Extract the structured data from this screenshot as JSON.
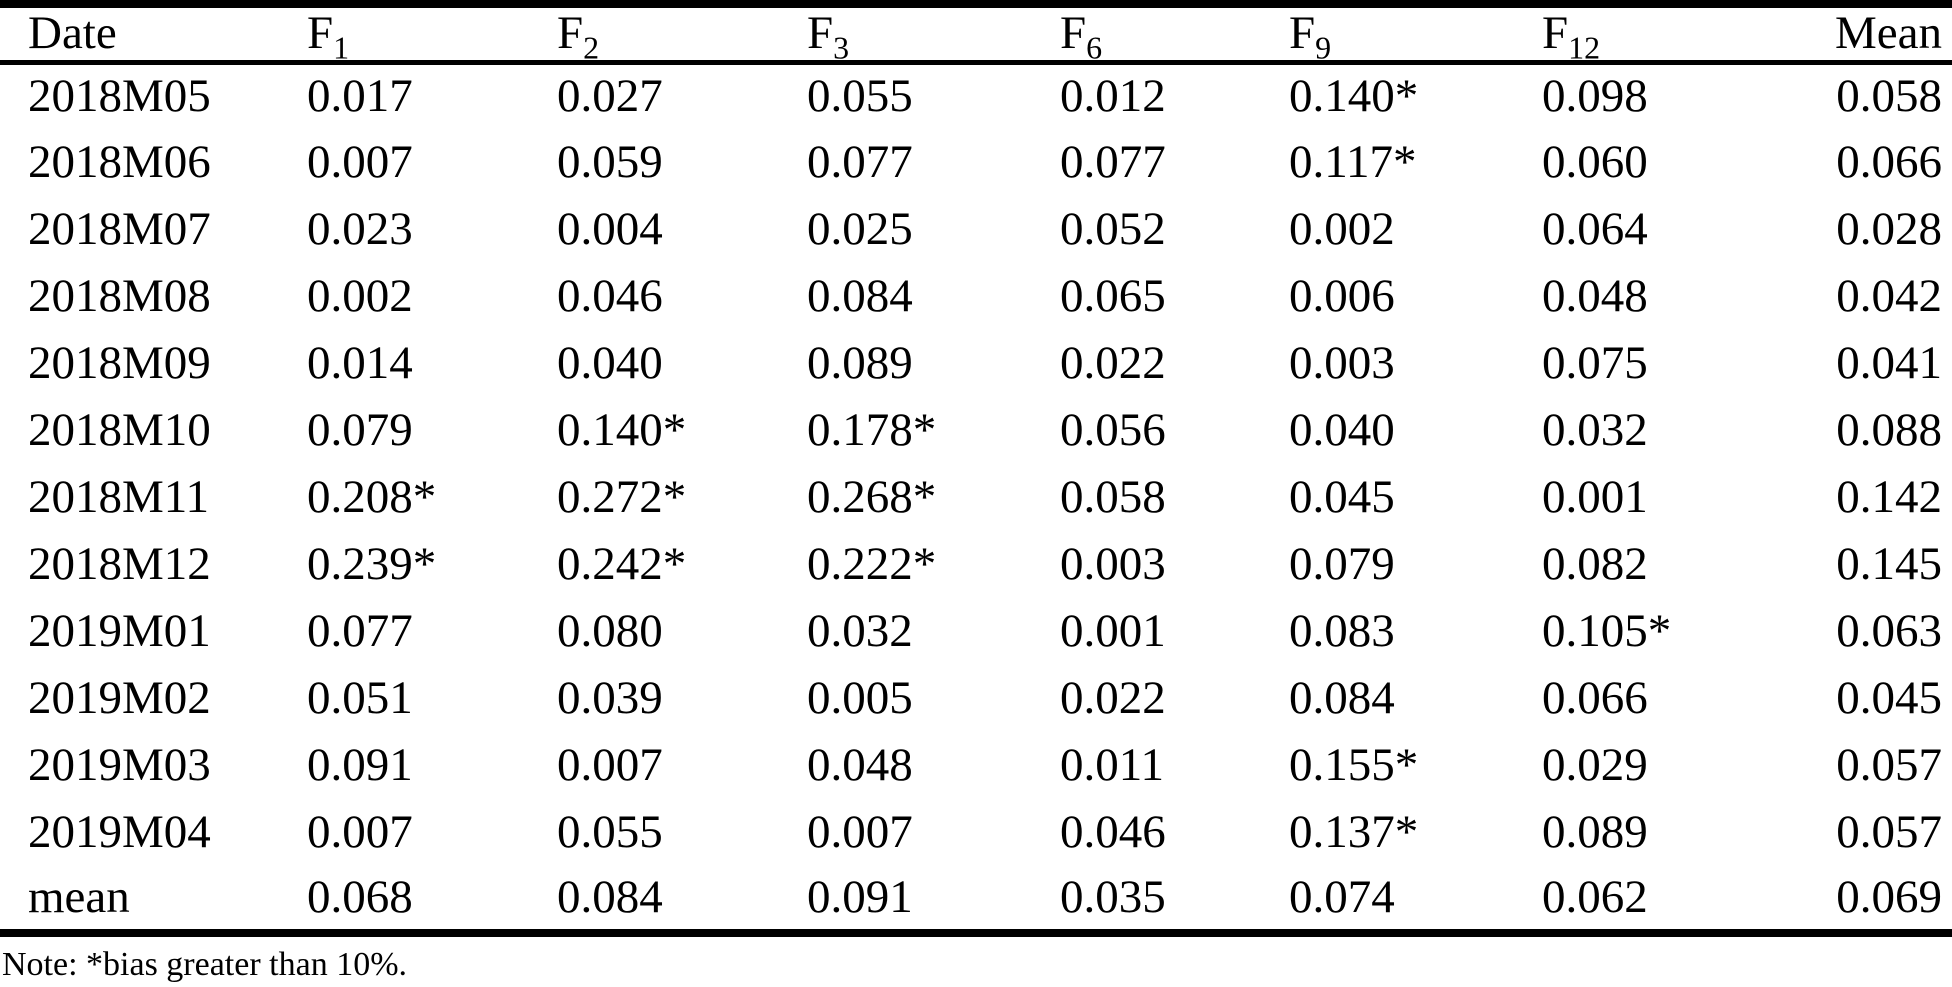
{
  "table": {
    "columns": [
      {
        "label": "Date",
        "sub": ""
      },
      {
        "label": "F",
        "sub": "1"
      },
      {
        "label": "F",
        "sub": "2"
      },
      {
        "label": "F",
        "sub": "3"
      },
      {
        "label": "F",
        "sub": "6"
      },
      {
        "label": "F",
        "sub": "9"
      },
      {
        "label": "F",
        "sub": "12"
      },
      {
        "label": "Mean",
        "sub": ""
      }
    ],
    "rows": [
      {
        "date": "2018M05",
        "values": [
          "0.017",
          "0.027",
          "0.055",
          "0.012",
          "0.140*",
          "0.098",
          "0.058"
        ]
      },
      {
        "date": "2018M06",
        "values": [
          "0.007",
          "0.059",
          "0.077",
          "0.077",
          "0.117*",
          "0.060",
          "0.066"
        ]
      },
      {
        "date": "2018M07",
        "values": [
          "0.023",
          "0.004",
          "0.025",
          "0.052",
          "0.002",
          "0.064",
          "0.028"
        ]
      },
      {
        "date": "2018M08",
        "values": [
          "0.002",
          "0.046",
          "0.084",
          "0.065",
          "0.006",
          "0.048",
          "0.042"
        ]
      },
      {
        "date": "2018M09",
        "values": [
          "0.014",
          "0.040",
          "0.089",
          "0.022",
          "0.003",
          "0.075",
          "0.041"
        ]
      },
      {
        "date": "2018M10",
        "values": [
          "0.079",
          "0.140*",
          "0.178*",
          "0.056",
          "0.040",
          "0.032",
          "0.088"
        ]
      },
      {
        "date": "2018M11",
        "values": [
          "0.208*",
          "0.272*",
          "0.268*",
          "0.058",
          "0.045",
          "0.001",
          "0.142"
        ]
      },
      {
        "date": "2018M12",
        "values": [
          "0.239*",
          "0.242*",
          "0.222*",
          "0.003",
          "0.079",
          "0.082",
          "0.145"
        ]
      },
      {
        "date": "2019M01",
        "values": [
          "0.077",
          "0.080",
          "0.032",
          "0.001",
          "0.083",
          "0.105*",
          "0.063"
        ]
      },
      {
        "date": "2019M02",
        "values": [
          "0.051",
          "0.039",
          "0.005",
          "0.022",
          "0.084",
          "0.066",
          "0.045"
        ]
      },
      {
        "date": "2019M03",
        "values": [
          "0.091",
          "0.007",
          "0.048",
          "0.011",
          "0.155*",
          "0.029",
          "0.057"
        ]
      },
      {
        "date": "2019M04",
        "values": [
          "0.007",
          "0.055",
          "0.007",
          "0.046",
          "0.137*",
          "0.089",
          "0.057"
        ]
      },
      {
        "date": "mean",
        "values": [
          "0.068",
          "0.084",
          "0.091",
          "0.035",
          "0.074",
          "0.062",
          "0.069"
        ]
      }
    ]
  },
  "note": {
    "text": "Note: *bias greater than 10%."
  },
  "colors": {
    "text": "#000000",
    "background": "#ffffff",
    "border": "#000000"
  }
}
